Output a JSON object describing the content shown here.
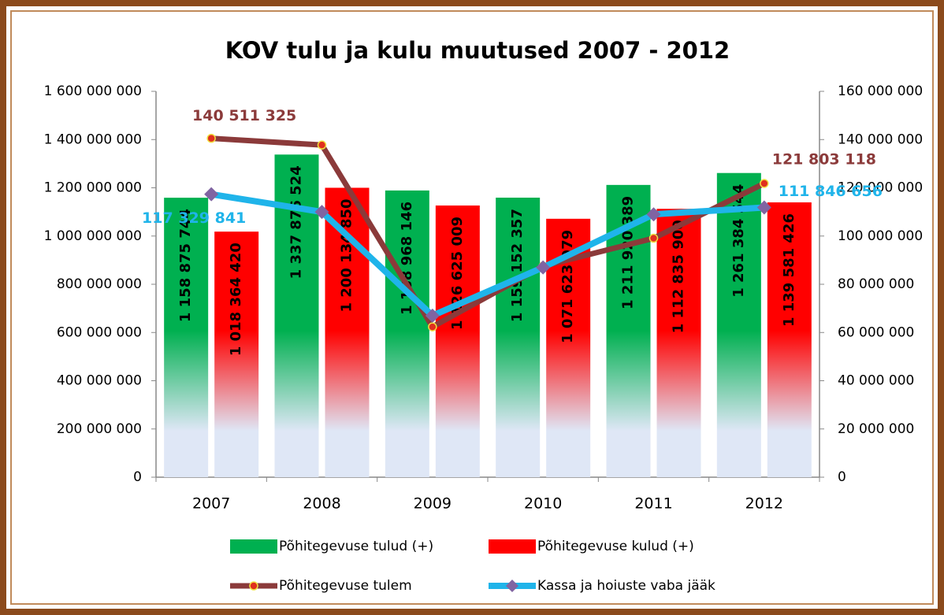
{
  "chart_data": {
    "type": "bar",
    "title": "KOV tulu ja kulu muutused 2007 - 2012",
    "categories": [
      "2007",
      "2008",
      "2009",
      "2010",
      "2011",
      "2012"
    ],
    "series": [
      {
        "name": "Põhitegevuse tulud (+)",
        "type": "bar",
        "color": "#00b050",
        "values": [
          1158875744,
          1337876524,
          1188968146,
          1159152357,
          1211920389,
          1261384544
        ],
        "value_labels": [
          "1 158 875 744",
          "1 337 876 524",
          "1 188 968 146",
          "1 159 152 357",
          "1 211 920 389",
          "1 261 384 544"
        ]
      },
      {
        "name": "Põhitegevuse kulud (+)",
        "type": "bar",
        "color": "#ff0000",
        "values": [
          1018364420,
          1200134850,
          1126625009,
          1071623979,
          1112835900,
          1139581426
        ],
        "value_labels": [
          "1 018 364 420",
          "1 200 134 850",
          "1 126 625 009",
          "1 071 623 979",
          "1 112 835 900",
          "1 139 581 426"
        ]
      },
      {
        "name": "Põhitegevuse tulem",
        "type": "line",
        "axis": "y2",
        "color": "#8b3a3a",
        "marker_color": "#e0301e",
        "values": [
          140511325,
          137741674,
          62343137,
          87528378,
          99084489,
          121803118
        ],
        "value_labels": [
          "140 511 325",
          null,
          null,
          null,
          null,
          "121 803 118"
        ]
      },
      {
        "name": "Kassa ja hoiuste vaba jääk",
        "type": "line",
        "axis": "y2",
        "color": "#1fb4ea",
        "marker_color": "#8064a2",
        "values": [
          117329841,
          110000000,
          67000000,
          87000000,
          109000000,
          111846656
        ],
        "value_labels": [
          "117 329 841",
          null,
          null,
          null,
          null,
          "111 846 656"
        ]
      }
    ],
    "ylim": [
      0,
      1600000000
    ],
    "yticks": [
      0,
      {
        "value": 200000000,
        "label": "200 000 000"
      },
      {
        "value": 400000000,
        "label": "400 000 000"
      },
      {
        "value": 600000000,
        "label": "600 000 000"
      },
      {
        "value": 800000000,
        "label": "800 000 000"
      },
      {
        "value": 1000000000,
        "label": "1 000 000 000"
      },
      {
        "value": 1200000000,
        "label": "1 200 000 000"
      },
      {
        "value": 1400000000,
        "label": "1 400 000 000"
      },
      {
        "value": 1600000000,
        "label": "1 600 000 000"
      }
    ],
    "y2lim": [
      0,
      160000000
    ],
    "y2ticks": [
      0,
      {
        "value": 20000000,
        "label": "20 000 000"
      },
      {
        "value": 40000000,
        "label": "40 000 000"
      },
      {
        "value": 60000000,
        "label": "60 000 000"
      },
      {
        "value": 80000000,
        "label": "80 000 000"
      },
      {
        "value": 100000000,
        "label": "100 000 000"
      },
      {
        "value": 120000000,
        "label": "120 000 000"
      },
      {
        "value": 140000000,
        "label": "140 000 000"
      },
      {
        "value": 160000000,
        "label": "160 000 000"
      }
    ],
    "grid": false,
    "legend": "bottom"
  }
}
